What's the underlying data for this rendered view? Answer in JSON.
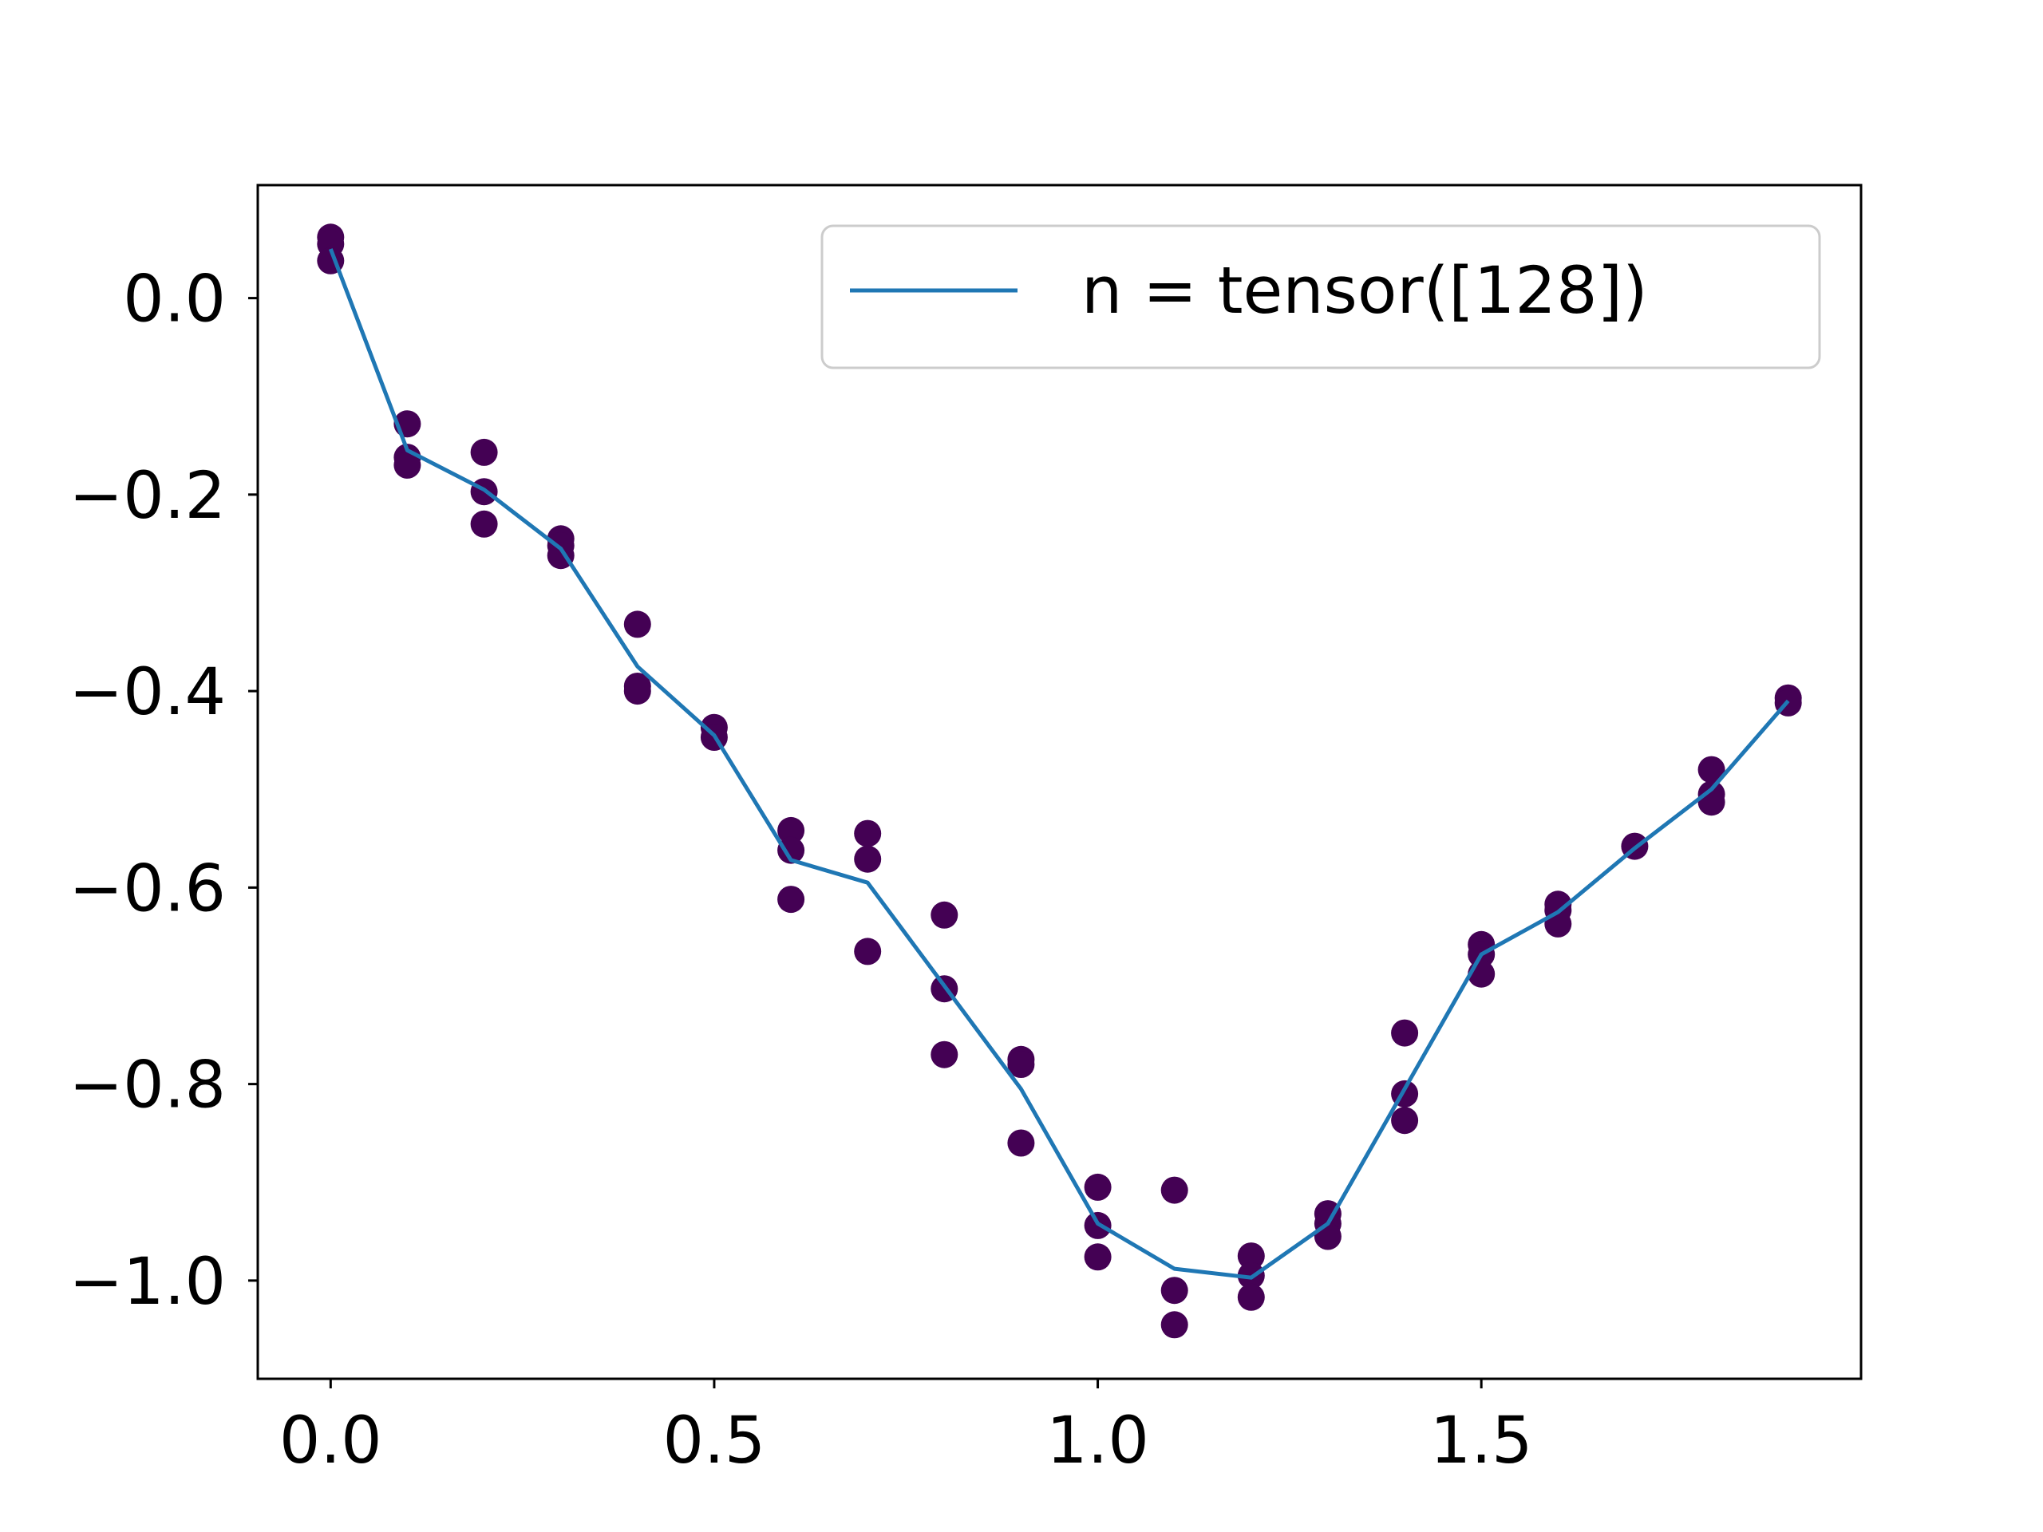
{
  "chart_data": {
    "type": "scatter",
    "title": "",
    "xlabel": "",
    "ylabel": "",
    "xlim": [
      -0.095,
      1.995
    ],
    "ylim": [
      -1.1,
      0.115
    ],
    "x_ticks": [
      0.0,
      0.5,
      1.0,
      1.5
    ],
    "x_tick_labels": [
      "0.0",
      "0.5",
      "1.0",
      "1.5"
    ],
    "y_ticks": [
      0.0,
      -0.2,
      -0.4,
      -0.6,
      -0.8,
      -1.0
    ],
    "y_tick_labels": [
      "0.0",
      "−0.2",
      "−0.4",
      "−0.6",
      "−0.8",
      "−1.0"
    ],
    "grid": false,
    "legend_position": "top-right",
    "colors": {
      "points": "#440154",
      "line": "#1f77b4",
      "axes": "#000000"
    },
    "series": [
      {
        "name": "n = tensor([128])",
        "type": "line",
        "x": [
          0.0,
          0.1,
          0.2,
          0.3,
          0.4,
          0.5,
          0.6,
          0.7,
          0.8,
          0.9,
          1.0,
          1.1,
          1.2,
          1.3,
          1.4,
          1.5,
          1.6,
          1.7,
          1.8,
          1.9
        ],
        "y": [
          0.05,
          -0.155,
          -0.195,
          -0.255,
          -0.375,
          -0.445,
          -0.572,
          -0.595,
          -0.7,
          -0.805,
          -0.942,
          -0.988,
          -0.997,
          -0.942,
          -0.805,
          -0.668,
          -0.625,
          -0.56,
          -0.5,
          -0.41
        ]
      },
      {
        "type": "scatter",
        "points": [
          [
            0.0,
            0.062
          ],
          [
            0.0,
            0.055
          ],
          [
            0.0,
            0.038
          ],
          [
            0.1,
            -0.128
          ],
          [
            0.1,
            -0.162
          ],
          [
            0.1,
            -0.17
          ],
          [
            0.2,
            -0.157
          ],
          [
            0.2,
            -0.197
          ],
          [
            0.2,
            -0.23
          ],
          [
            0.3,
            -0.245
          ],
          [
            0.3,
            -0.252
          ],
          [
            0.3,
            -0.262
          ],
          [
            0.4,
            -0.332
          ],
          [
            0.4,
            -0.395
          ],
          [
            0.4,
            -0.4
          ],
          [
            0.5,
            -0.437
          ],
          [
            0.5,
            -0.447
          ],
          [
            0.6,
            -0.542
          ],
          [
            0.6,
            -0.562
          ],
          [
            0.6,
            -0.612
          ],
          [
            0.7,
            -0.545
          ],
          [
            0.7,
            -0.571
          ],
          [
            0.7,
            -0.665
          ],
          [
            0.8,
            -0.628
          ],
          [
            0.8,
            -0.703
          ],
          [
            0.8,
            -0.77
          ],
          [
            0.9,
            -0.775
          ],
          [
            0.9,
            -0.78
          ],
          [
            0.9,
            -0.86
          ],
          [
            1.0,
            -0.905
          ],
          [
            1.0,
            -0.944
          ],
          [
            1.0,
            -0.976
          ],
          [
            1.1,
            -0.908
          ],
          [
            1.1,
            -1.01
          ],
          [
            1.1,
            -1.045
          ],
          [
            1.2,
            -0.975
          ],
          [
            1.2,
            -0.995
          ],
          [
            1.2,
            -1.017
          ],
          [
            1.3,
            -0.932
          ],
          [
            1.3,
            -0.942
          ],
          [
            1.3,
            -0.955
          ],
          [
            1.4,
            -0.748
          ],
          [
            1.4,
            -0.81
          ],
          [
            1.4,
            -0.837
          ],
          [
            1.5,
            -0.658
          ],
          [
            1.5,
            -0.668
          ],
          [
            1.5,
            -0.688
          ],
          [
            1.6,
            -0.617
          ],
          [
            1.6,
            -0.623
          ],
          [
            1.6,
            -0.637
          ],
          [
            1.7,
            -0.558
          ],
          [
            1.8,
            -0.48
          ],
          [
            1.8,
            -0.505
          ],
          [
            1.8,
            -0.513
          ],
          [
            1.9,
            -0.407
          ],
          [
            1.9,
            -0.412
          ]
        ]
      }
    ]
  }
}
